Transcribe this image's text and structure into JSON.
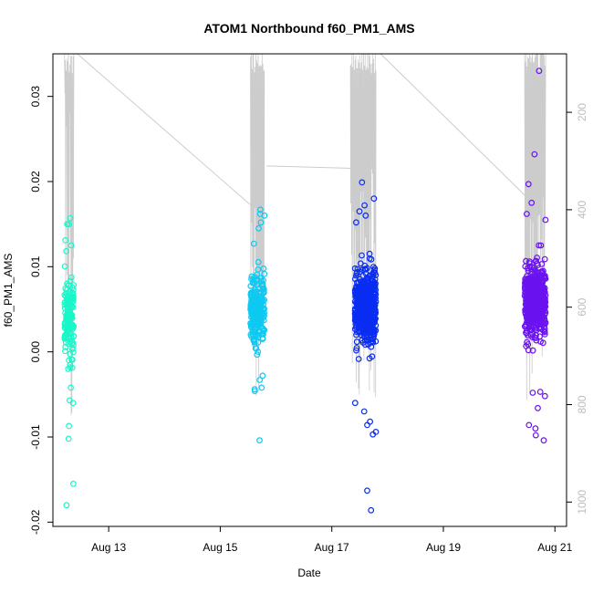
{
  "chart_data": {
    "type": "scatter",
    "title": "ATOM1 Northbound f60_PM1_AMS",
    "xlabel": "Date",
    "ylabel": "f60_PM1_AMS",
    "x_ticks": [
      "Aug 13",
      "Aug 15",
      "Aug 17",
      "Aug 19",
      "Aug 21"
    ],
    "y_ticks": [
      "-0.02",
      "-0.01",
      "0.00",
      "0.01",
      "0.02",
      "0.03"
    ],
    "y2_ticks": [
      "200",
      "400",
      "600",
      "800",
      "1000"
    ],
    "xlim": [
      "2021-08-12 00:00",
      "2021-08-21 05:00"
    ],
    "ylim": [
      -0.0205,
      0.035
    ],
    "y2lim": [
      1050,
      80
    ],
    "y2_reversed": true,
    "colors": {
      "cluster1": "#19f7c9",
      "cluster2": "#0ec9f2",
      "cluster3": "#0a2df2",
      "cluster4": "#6b12f0",
      "secondary_line": "#cccccc"
    },
    "series": [
      {
        "x_range": [
          "2021-08-12 05:00",
          "2021-08-12 09:00"
        ],
        "y_center": 0.004,
        "y_spread": 0.0045,
        "outliers": [
          0.015,
          0.015,
          0.0157,
          -0.0042,
          -0.006,
          -0.0057,
          -0.0087,
          -0.0102,
          -0.0155,
          -0.018,
          0.0131,
          0.0125,
          -0.0015,
          -0.002
        ],
        "color": "cluster1"
      },
      {
        "x_range": [
          "2021-08-15 13:00",
          "2021-08-15 19:00"
        ],
        "y_center": 0.005,
        "y_spread": 0.0033,
        "outliers": [
          0.0167,
          0.016,
          0.0152,
          0.0162,
          0.0145,
          -0.0104,
          -0.0042,
          -0.0044,
          -0.0046,
          -0.0028,
          0.0127
        ],
        "color": "cluster2"
      },
      {
        "x_range": [
          "2021-08-17 10:00",
          "2021-08-17 19:00"
        ],
        "y_center": 0.0052,
        "y_spread": 0.0035,
        "outliers": [
          0.0199,
          0.018,
          0.0172,
          0.0165,
          0.016,
          0.0152,
          -0.0163,
          -0.0186,
          -0.0082,
          -0.0094,
          -0.0097,
          -0.0086,
          -0.006,
          -0.007
        ],
        "color": "cluster3"
      },
      {
        "x_range": [
          "2021-08-20 11:00",
          "2021-08-20 20:00"
        ],
        "y_center": 0.006,
        "y_spread": 0.0035,
        "outliers": [
          0.033,
          0.0232,
          0.0197,
          0.0175,
          0.0162,
          0.0155,
          -0.0086,
          -0.0066,
          -0.0098,
          -0.0104,
          -0.009,
          -0.0047,
          -0.0048,
          -0.0052
        ],
        "color": "cluster4"
      }
    ],
    "secondary_line": {
      "points": [
        [
          "2021-08-12 05:00",
          150
        ],
        [
          "2021-08-12 09:00",
          850
        ],
        [
          "2021-08-12 10:30",
          60
        ],
        [
          "2021-08-15 13:00",
          390
        ],
        [
          "2021-08-15 19:00",
          800
        ],
        [
          "2021-08-15 20:00",
          310
        ],
        [
          "2021-08-17 08:00",
          315
        ],
        [
          "2021-08-17 19:00",
          820
        ],
        [
          "2021-08-17 21:00",
          60
        ],
        [
          "2021-08-20 11:00",
          370
        ],
        [
          "2021-08-20 20:00",
          800
        ],
        [
          "2021-08-20 22:00",
          60
        ]
      ],
      "color": "secondary_line"
    }
  }
}
